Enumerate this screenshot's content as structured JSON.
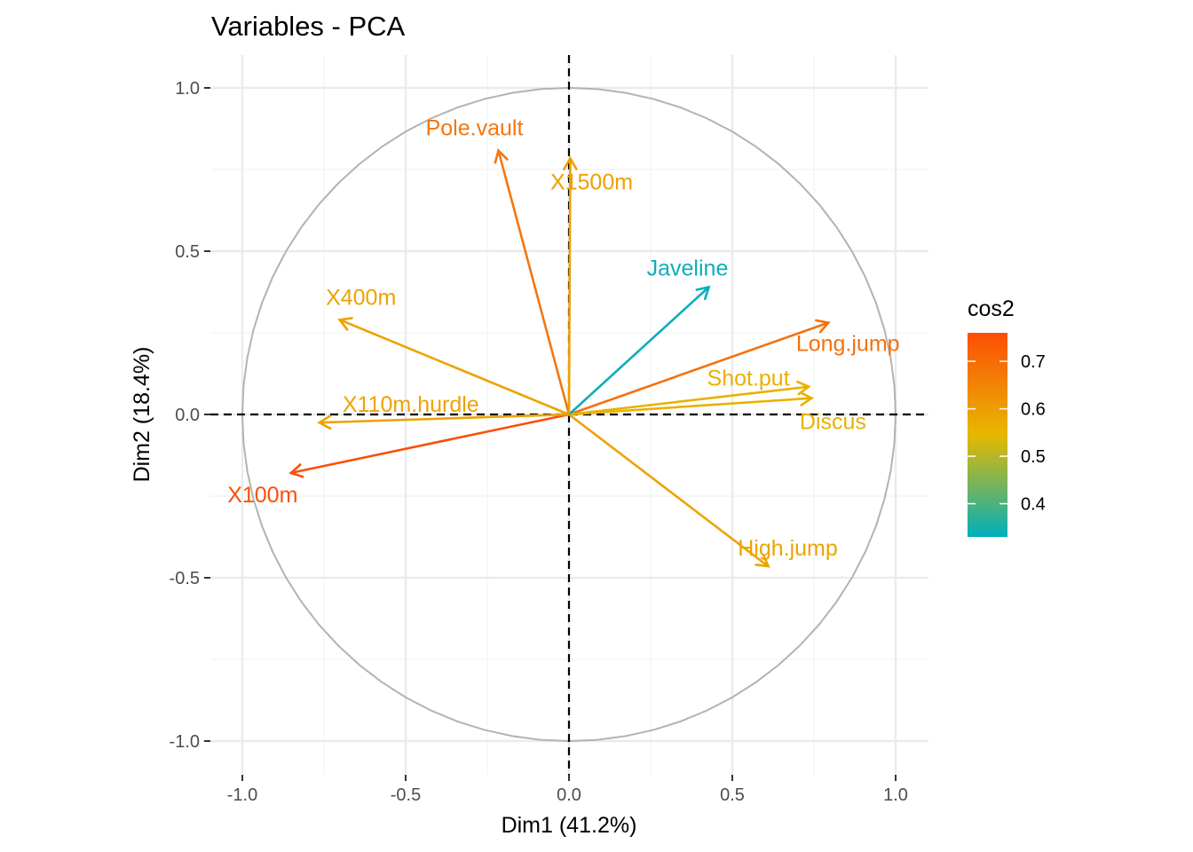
{
  "chart_data": {
    "type": "scatter",
    "subtype": "pca-variable-correlation-circle",
    "title": "Variables - PCA",
    "xlabel": "Dim1 (41.2%)",
    "ylabel": "Dim2 (18.4%)",
    "xlim": [
      -1.0,
      1.0
    ],
    "ylim": [
      -1.0,
      1.0
    ],
    "xticks": [
      -1.0,
      -0.5,
      0.0,
      0.5,
      1.0
    ],
    "xtick_labels": [
      "-1.0",
      "-0.5",
      "0.0",
      "0.5",
      "1.0"
    ],
    "yticks": [
      -1.0,
      -0.5,
      0.0,
      0.5,
      1.0
    ],
    "ytick_labels": [
      "-1.0",
      "-0.5",
      "0.0",
      "0.5",
      "1.0"
    ],
    "grid": true,
    "unit_circle": true,
    "color_by": "cos2",
    "legend": {
      "title": "cos2",
      "position": "right",
      "breaks": [
        0.4,
        0.5,
        0.6,
        0.7
      ],
      "break_labels": [
        "0.4",
        "0.5",
        "0.6",
        "0.7"
      ],
      "range": [
        0.33,
        0.76
      ],
      "gradient": [
        {
          "value": 0.33,
          "color": "#00AFBB"
        },
        {
          "value": 0.545,
          "color": "#E7B800"
        },
        {
          "value": 0.76,
          "color": "#FC4E07"
        }
      ]
    },
    "variables": [
      {
        "name": "X100m",
        "x": -0.851,
        "y": -0.179,
        "cos2": 0.76,
        "color": "#FB4F07"
      },
      {
        "name": "Long.jump",
        "x": 0.794,
        "y": 0.281,
        "cos2": 0.71,
        "color": "#F4710B"
      },
      {
        "name": "Shot.put",
        "x": 0.734,
        "y": 0.085,
        "cos2": 0.55,
        "color": "#E9B000"
      },
      {
        "name": "High.jump",
        "x": 0.61,
        "y": -0.465,
        "cos2": 0.59,
        "color": "#ECA301"
      },
      {
        "name": "X400m",
        "x": -0.702,
        "y": 0.29,
        "cos2": 0.58,
        "color": "#ECA301"
      },
      {
        "name": "X110m.hurdle",
        "x": -0.764,
        "y": -0.025,
        "cos2": 0.58,
        "color": "#ECA301"
      },
      {
        "name": "Discus",
        "x": 0.743,
        "y": 0.05,
        "cos2": 0.56,
        "color": "#E9B000"
      },
      {
        "name": "Pole.vault",
        "x": -0.216,
        "y": 0.808,
        "cos2": 0.7,
        "color": "#F47610"
      },
      {
        "name": "Javeline",
        "x": 0.428,
        "y": 0.39,
        "cos2": 0.34,
        "color": "#0DAEBB"
      },
      {
        "name": "X1500m",
        "x": 0.004,
        "y": 0.784,
        "cos2": 0.61,
        "color": "#EDA003"
      }
    ]
  }
}
